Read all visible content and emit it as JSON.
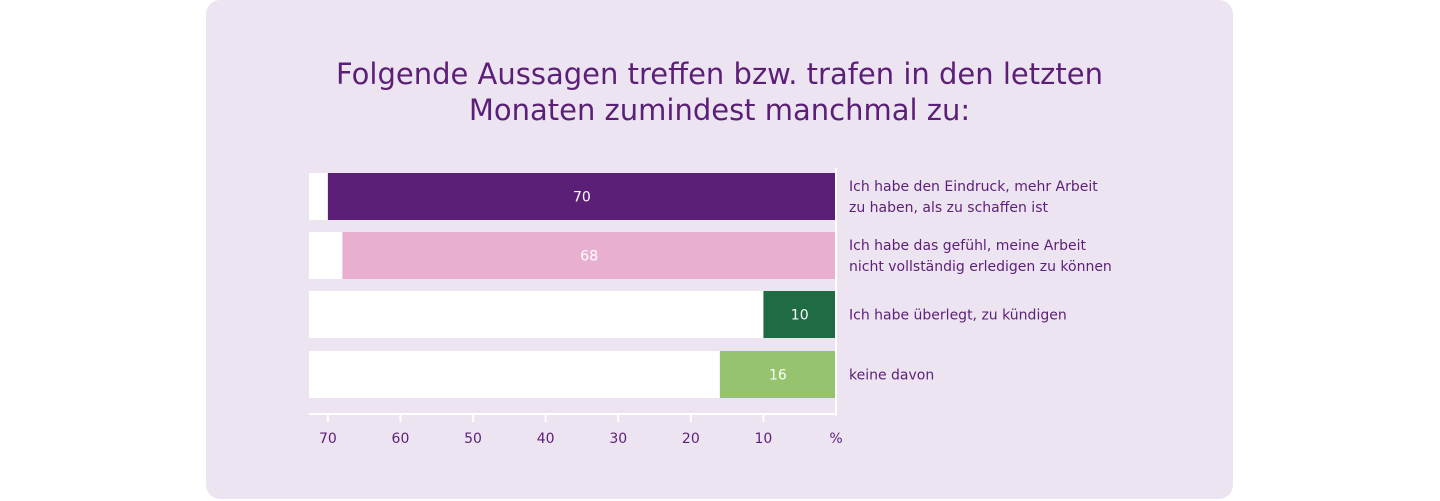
{
  "chart_data": {
    "type": "bar",
    "orientation": "horizontal",
    "direction": "right-to-left",
    "title_lines": [
      "Folgende Aussagen treffen bzw. trafen in den letzten",
      "Monaten zumindest manchmal zu:"
    ],
    "categories": [
      [
        "Ich habe den Eindruck, mehr Arbeit",
        "zu haben, als zu schaffen ist"
      ],
      [
        "Ich habe das gefühl, meine Arbeit",
        "nicht vollständig erledigen zu können"
      ],
      [
        "Ich habe überlegt, zu kündigen"
      ],
      [
        "keine davon"
      ]
    ],
    "values": [
      70,
      68,
      10,
      16
    ],
    "value_labels": [
      "70",
      "68",
      "10",
      "16"
    ],
    "colors": [
      "#5c1f77",
      "#e9afd0",
      "#1f6b44",
      "#96c46e"
    ],
    "xlim": [
      0,
      72.6
    ],
    "xticks": [
      70,
      60,
      50,
      40,
      30,
      20,
      10
    ],
    "xtick_labels": [
      "70",
      "60",
      "50",
      "40",
      "30",
      "20",
      "10"
    ],
    "unit_label": "%",
    "track_color": "#ffffff",
    "text_color": "#5c1f77",
    "background": "#ede4f1"
  }
}
